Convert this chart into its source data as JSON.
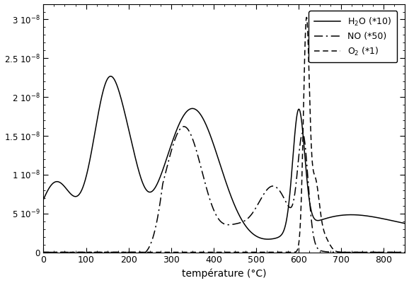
{
  "title": "",
  "xlabel": "température (°C)",
  "ylabel": "",
  "xlim": [
    0,
    850
  ],
  "ylim": [
    0,
    3.2e-08
  ],
  "yticks": [
    0,
    5e-09,
    1e-08,
    1.5e-08,
    2e-08,
    2.5e-08,
    3e-08
  ],
  "xticks": [
    0,
    100,
    200,
    300,
    400,
    500,
    600,
    700,
    800
  ],
  "bg_color": "#ffffff",
  "line_color": "#000000",
  "figsize": [
    5.78,
    4.0
  ],
  "dpi": 100
}
